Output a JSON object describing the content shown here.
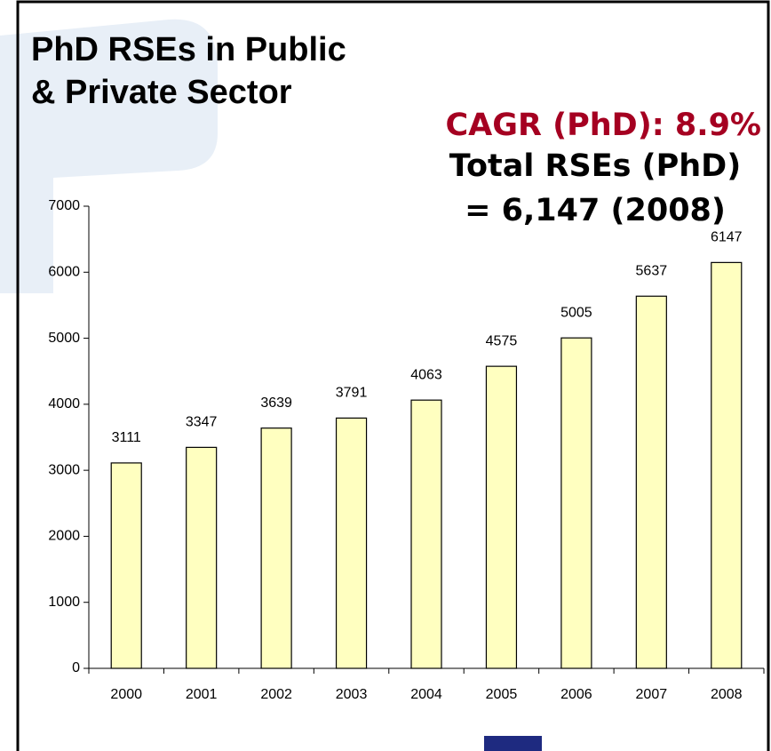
{
  "chart_data": {
    "type": "bar",
    "title": [
      "PhD RSEs in Public",
      "& Private Sector"
    ],
    "annotations": [
      "CAGR (PhD): 8.9%",
      "Total RSEs (PhD)",
      "= 6,147 (2008)"
    ],
    "categories": [
      "2000",
      "2001",
      "2002",
      "2003",
      "2004",
      "2005",
      "2006",
      "2007",
      "2008"
    ],
    "values": [
      3111,
      3347,
      3639,
      3791,
      4063,
      4575,
      5005,
      5637,
      6147
    ],
    "color": "#ffffc0",
    "ylim": [
      0,
      7000
    ],
    "yticks": [
      0,
      1000,
      2000,
      3000,
      4000,
      5000,
      6000,
      7000
    ],
    "grid": false
  }
}
